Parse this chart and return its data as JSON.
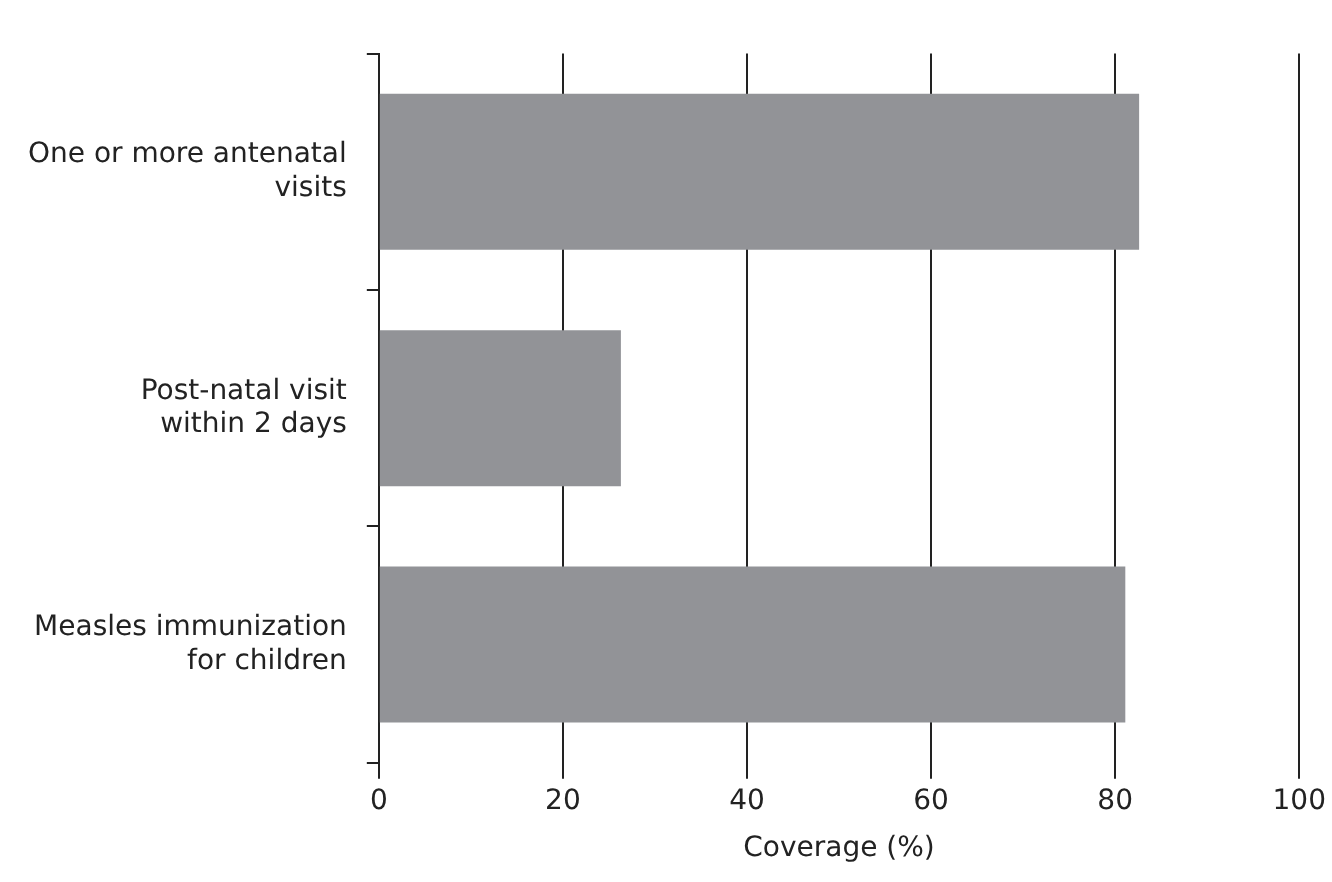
{
  "chart_data": {
    "type": "bar",
    "orientation": "horizontal",
    "xlabel": "Coverage (%)",
    "categories": [
      "One or more antenatal visits",
      "Post-natal visit within 2 days",
      "Measles immunization for children"
    ],
    "values": [
      82.6,
      26.3,
      81.1
    ],
    "color": "#929397",
    "xlim": [
      0,
      100
    ],
    "xticks": [
      0,
      20,
      40,
      60,
      80,
      100
    ],
    "grid": "x",
    "legend": false
  }
}
